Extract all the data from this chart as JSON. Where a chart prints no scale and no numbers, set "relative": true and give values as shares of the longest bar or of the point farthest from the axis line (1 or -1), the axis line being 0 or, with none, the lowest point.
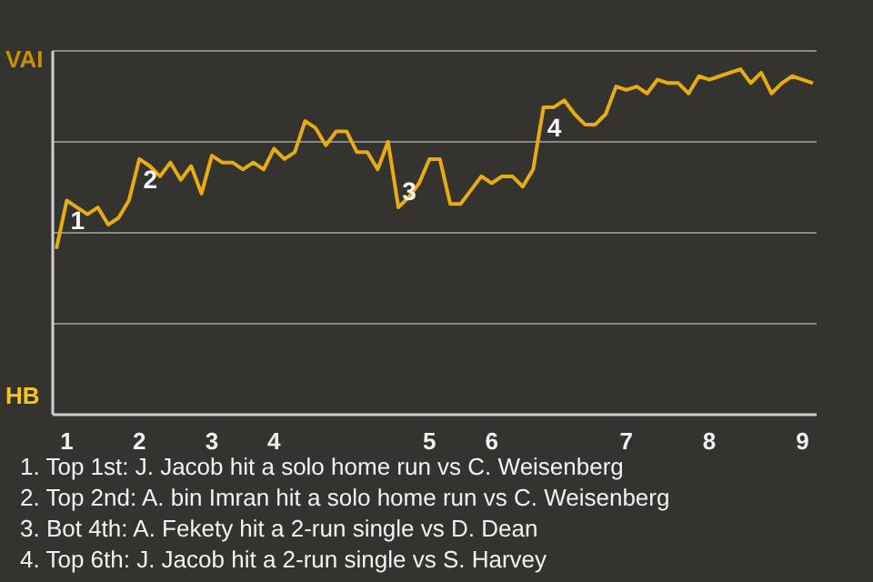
{
  "chart_data": {
    "type": "line",
    "relative": true,
    "categories": [
      null,
      "1",
      null,
      null,
      null,
      null,
      null,
      null,
      "2",
      null,
      null,
      null,
      null,
      null,
      null,
      "3",
      null,
      null,
      null,
      null,
      null,
      "4",
      null,
      null,
      null,
      null,
      null,
      null,
      null,
      null,
      null,
      null,
      null,
      null,
      null,
      null,
      "5",
      null,
      null,
      null,
      null,
      null,
      "6",
      null,
      null,
      null,
      null,
      null,
      null,
      null,
      null,
      null,
      null,
      null,
      null,
      "7",
      null,
      null,
      null,
      null,
      null,
      null,
      null,
      "8",
      null,
      null,
      null,
      null,
      null,
      null,
      null,
      null,
      "9",
      null
    ],
    "series": [
      {
        "color": "#e6ad12",
        "values": [
          0.48,
          0.62,
          0.6,
          0.58,
          0.6,
          0.55,
          0.57,
          0.62,
          0.74,
          0.72,
          0.69,
          0.73,
          0.68,
          0.72,
          0.64,
          0.75,
          0.73,
          0.73,
          0.71,
          0.73,
          0.71,
          0.77,
          0.74,
          0.76,
          0.85,
          0.83,
          0.78,
          0.82,
          0.82,
          0.76,
          0.76,
          0.71,
          0.79,
          0.6,
          0.63,
          0.67,
          0.74,
          0.74,
          0.61,
          0.61,
          0.65,
          0.69,
          0.67,
          0.69,
          0.69,
          0.66,
          0.71,
          0.89,
          0.89,
          0.91,
          0.87,
          0.84,
          0.84,
          0.87,
          0.95,
          0.94,
          0.95,
          0.93,
          0.97,
          0.96,
          0.96,
          0.93,
          0.98,
          0.97,
          0.98,
          0.99,
          1,
          0.96,
          0.99,
          0.93,
          0.96,
          0.98,
          0.97,
          0.96
        ]
      }
    ],
    "grid": "y",
    "marker": "none",
    "line_style": "solid",
    "annotations": [
      "VAI",
      "HB",
      {
        "text": "1",
        "y": 0.62
      },
      {
        "text": "2",
        "y": 0.74
      },
      {
        "text": "3",
        "y": 0.6
      },
      {
        "text": "4",
        "y": 0.89
      },
      "1. Top 1st: J. Jacob hit a solo home run vs C. Weisenberg",
      "2. Top 2nd: A. bin Imran hit a solo home run vs C. Weisenberg",
      "3. Bot 4th: A. Fekety hit a 2-run single vs D. Dean",
      "4. Top 6th: J. Jacob hit a 2-run single vs S. Harvey"
    ]
  }
}
